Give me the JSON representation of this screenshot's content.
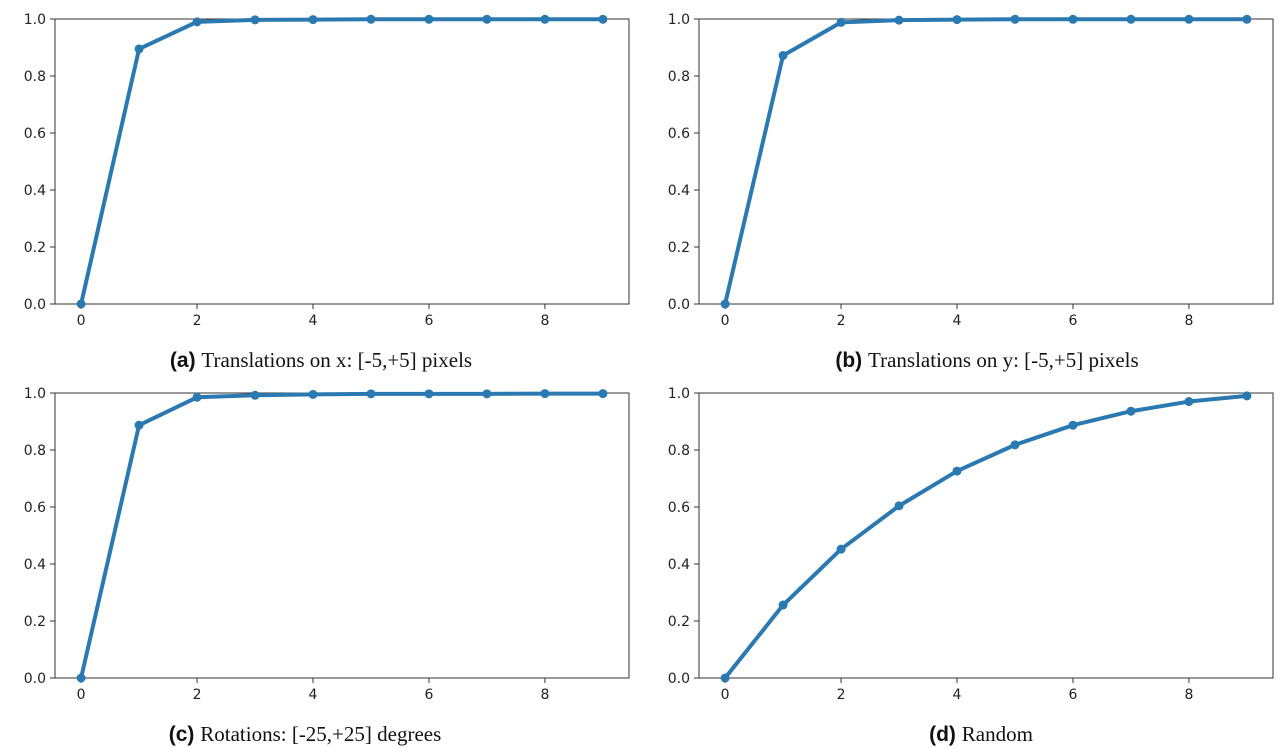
{
  "colors": {
    "series": "#2b79b1",
    "axis": "#333333"
  },
  "chart_data": [
    {
      "type": "line",
      "caption_tag": "(a)",
      "caption": "Translations on x: [-5,+5] pixels",
      "x": [
        0,
        1,
        2,
        3,
        4,
        5,
        6,
        7,
        8,
        9
      ],
      "series": [
        {
          "values": [
            0.0,
            0.895,
            0.99,
            0.997,
            0.998,
            0.999,
            0.999,
            0.999,
            0.999,
            0.999
          ]
        }
      ],
      "xlim": [
        -0.45,
        9.45
      ],
      "ylim": [
        0,
        1.0
      ],
      "xticks": [
        0,
        2,
        4,
        6,
        8
      ],
      "xtick_labels": [
        "0",
        "2",
        "4",
        "6",
        "8"
      ],
      "yticks": [
        0.0,
        0.2,
        0.4,
        0.6,
        0.8,
        1.0
      ],
      "ytick_labels": [
        "0.0",
        "0.2",
        "0.4",
        "0.6",
        "0.8",
        "1.0"
      ],
      "grid": false
    },
    {
      "type": "line",
      "caption_tag": "(b)",
      "caption": "Translations on y: [-5,+5] pixels",
      "x": [
        0,
        1,
        2,
        3,
        4,
        5,
        6,
        7,
        8,
        9
      ],
      "series": [
        {
          "values": [
            0.0,
            0.872,
            0.988,
            0.996,
            0.998,
            0.999,
            0.999,
            0.999,
            0.999,
            0.999
          ]
        }
      ],
      "xlim": [
        -0.45,
        9.45
      ],
      "ylim": [
        0,
        1.0
      ],
      "xticks": [
        0,
        2,
        4,
        6,
        8
      ],
      "xtick_labels": [
        "0",
        "2",
        "4",
        "6",
        "8"
      ],
      "yticks": [
        0.0,
        0.2,
        0.4,
        0.6,
        0.8,
        1.0
      ],
      "ytick_labels": [
        "0.0",
        "0.2",
        "0.4",
        "0.6",
        "0.8",
        "1.0"
      ],
      "grid": false
    },
    {
      "type": "line",
      "caption_tag": "(c)",
      "caption": "Rotations: [-25,+25] degrees",
      "x": [
        0,
        1,
        2,
        3,
        4,
        5,
        6,
        7,
        8,
        9
      ],
      "series": [
        {
          "values": [
            0.0,
            0.887,
            0.985,
            0.992,
            0.995,
            0.997,
            0.997,
            0.997,
            0.998,
            0.998
          ]
        }
      ],
      "xlim": [
        -0.45,
        9.45
      ],
      "ylim": [
        0,
        1.0
      ],
      "xticks": [
        0,
        2,
        4,
        6,
        8
      ],
      "xtick_labels": [
        "0",
        "2",
        "4",
        "6",
        "8"
      ],
      "yticks": [
        0.0,
        0.2,
        0.4,
        0.6,
        0.8,
        1.0
      ],
      "ytick_labels": [
        "0.0",
        "0.2",
        "0.4",
        "0.6",
        "0.8",
        "1.0"
      ],
      "grid": false
    },
    {
      "type": "line",
      "caption_tag": "(d)",
      "caption": "Random",
      "x": [
        0,
        1,
        2,
        3,
        4,
        5,
        6,
        7,
        8,
        9
      ],
      "series": [
        {
          "values": [
            0.0,
            0.256,
            0.452,
            0.604,
            0.726,
            0.818,
            0.887,
            0.936,
            0.97,
            0.99
          ]
        }
      ],
      "xlim": [
        -0.45,
        9.45
      ],
      "ylim": [
        0,
        1.0
      ],
      "xticks": [
        0,
        2,
        4,
        6,
        8
      ],
      "xtick_labels": [
        "0",
        "2",
        "4",
        "6",
        "8"
      ],
      "yticks": [
        0.0,
        0.2,
        0.4,
        0.6,
        0.8,
        1.0
      ],
      "ytick_labels": [
        "0.0",
        "0.2",
        "0.4",
        "0.6",
        "0.8",
        "1.0"
      ],
      "grid": false
    }
  ]
}
